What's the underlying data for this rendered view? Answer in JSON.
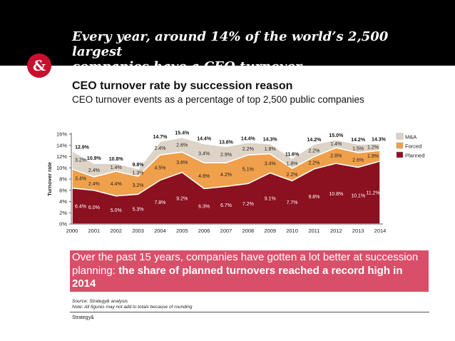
{
  "banner": {
    "title_line1": "Every year, around 14% of the world’s 2,500 largest",
    "title_line2": "companies have a CEO turnover",
    "logo_symbol": "&",
    "logo_color": "#c8102e"
  },
  "chart_data": {
    "type": "area",
    "stacked": true,
    "title": "CEO turnover rate by succession reason",
    "subtitle": "CEO turnover events as a percentage of top 2,500 public companies",
    "ylabel": "Turnover rate",
    "xlabel": "",
    "ylim": [
      0,
      16
    ],
    "yticks": [
      "0%",
      "2%",
      "4%",
      "6%",
      "8%",
      "10%",
      "12%",
      "14%",
      "16%"
    ],
    "x": [
      "2000",
      "2001",
      "2002",
      "2003",
      "2004",
      "2005",
      "2006",
      "2007",
      "2008",
      "2009",
      "2010",
      "2011",
      "2012",
      "2013",
      "2014"
    ],
    "series": [
      {
        "name": "Planned",
        "color": "#8b1020",
        "values": [
          6.4,
          6.0,
          5.0,
          5.3,
          7.8,
          9.2,
          6.3,
          6.7,
          7.2,
          9.1,
          7.7,
          9.8,
          10.8,
          10.1,
          11.2
        ],
        "labels": [
          "6.4%",
          "6.0%",
          "5.0%",
          "5.3%",
          "7.8%",
          "9.2%",
          "6.3%",
          "6.7%",
          "7.2%",
          "9.1%",
          "7.7%",
          "9.8%",
          "10.8%",
          "10.1%",
          "11.2%"
        ]
      },
      {
        "name": "Forced",
        "color": "#f0a04b",
        "values": [
          3.4,
          2.4,
          4.4,
          3.2,
          4.5,
          3.6,
          4.6,
          4.2,
          5.1,
          3.4,
          2.2,
          2.2,
          2.8,
          2.6,
          1.9
        ],
        "labels": [
          "3.4%",
          "2.4%",
          "4.4%",
          "3.2%",
          "4.5%",
          "3.6%",
          "4.6%",
          "4.2%",
          "5.1%",
          "3.4%",
          "2.2%",
          "2.2%",
          "2.8%",
          "2.6%",
          "1.9%"
        ]
      },
      {
        "name": "M&A",
        "color": "#ddd3c6",
        "values": [
          3.2,
          2.4,
          1.4,
          1.3,
          2.4,
          2.6,
          3.4,
          2.9,
          2.2,
          1.8,
          1.8,
          2.2,
          1.4,
          1.5,
          1.2
        ],
        "labels": [
          "3.2%",
          "2.4%",
          "1.4%",
          "1.3%",
          "2.4%",
          "2.6%",
          "3.4%",
          "2.9%",
          "2.2%",
          "1.8%",
          "1.8%",
          "2.2%",
          "1.4%",
          "1.5%",
          "1.2%"
        ]
      }
    ],
    "totals": [
      12.9,
      10.9,
      10.8,
      9.8,
      14.7,
      15.4,
      14.4,
      13.8,
      14.4,
      14.3,
      11.6,
      14.2,
      15.0,
      14.2,
      14.3
    ],
    "total_labels": [
      "12.9%",
      "10.9%",
      "10.8%",
      "9.8%",
      "14.7%",
      "15.4%",
      "14.4%",
      "13.8%",
      "14.4%",
      "14.3%",
      "11.6%",
      "14.2%",
      "15.0%",
      "14.2%",
      "14.3%"
    ],
    "legend": {
      "placement": "right",
      "items": [
        "M&A",
        "Forced",
        "Planned"
      ]
    },
    "grid": false
  },
  "callout": {
    "text_plain": "Over the past 15 years, companies have gotten a lot better at succession planning: ",
    "text_bold": "the share of planned turnovers reached a record high in 2014",
    "background": "#d94f6a"
  },
  "notes": {
    "source": "Source: Strategy& analysis",
    "note": "Note: All figures may not add to totals because of rounding"
  },
  "footer": {
    "brand": "Strategy&"
  }
}
